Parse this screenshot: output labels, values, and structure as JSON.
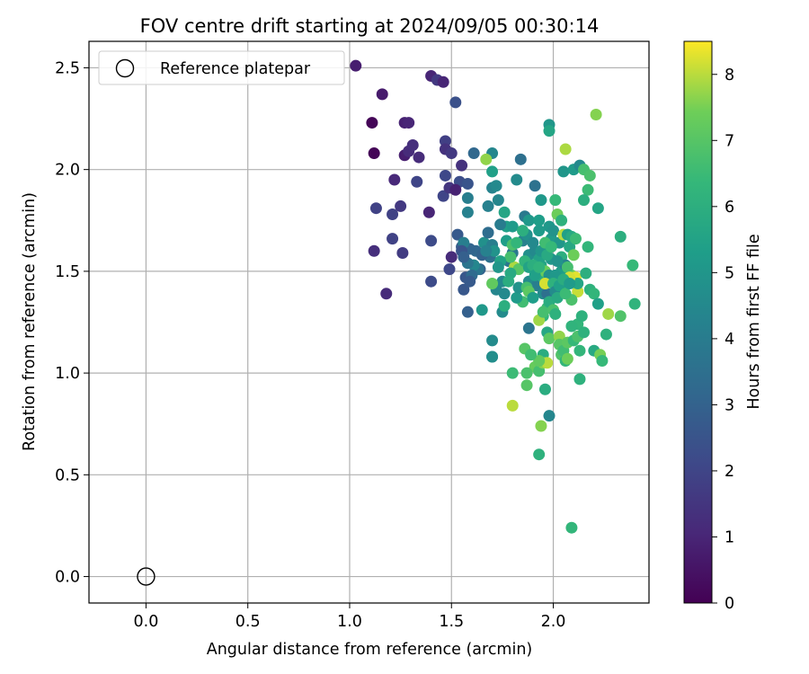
{
  "chart_data": {
    "type": "scatter",
    "title": "FOV centre drift starting at 2024/09/05 00:30:14",
    "xlabel": "Angular distance from reference (arcmin)",
    "ylabel": "Rotation from reference (arcmin)",
    "xlim": [
      -0.28,
      2.47
    ],
    "ylim": [
      -0.13,
      2.63
    ],
    "xticks": [
      0.0,
      0.5,
      1.0,
      1.5,
      2.0
    ],
    "yticks": [
      0.0,
      0.5,
      1.0,
      1.5,
      2.0,
      2.5
    ],
    "grid": true,
    "legend": {
      "position": "top-left",
      "entries": [
        {
          "label": "Reference platepar",
          "marker": "open-circle"
        }
      ]
    },
    "reference_point": {
      "x": 0.0,
      "y": 0.0
    },
    "colorbar": {
      "label": "Hours from first FF file",
      "min": 0,
      "max": 8.5,
      "ticks": [
        0,
        1,
        2,
        3,
        4,
        5,
        6,
        7,
        8
      ],
      "colormap": "viridis"
    },
    "series": [
      {
        "points": [
          [
            1.03,
            2.51,
            0.8
          ],
          [
            1.11,
            2.23,
            0.1
          ],
          [
            1.12,
            2.08,
            0.1
          ],
          [
            1.16,
            2.37,
            0.7
          ],
          [
            1.27,
            2.23,
            0.9
          ],
          [
            1.29,
            2.23,
            1.0
          ],
          [
            1.4,
            2.46,
            1.0
          ],
          [
            1.43,
            2.44,
            1.6
          ],
          [
            1.46,
            2.43,
            1.0
          ],
          [
            1.52,
            2.33,
            2.4
          ],
          [
            1.22,
            1.95,
            1.1
          ],
          [
            1.27,
            2.07,
            0.8
          ],
          [
            1.29,
            2.09,
            1.2
          ],
          [
            1.31,
            2.12,
            1.3
          ],
          [
            1.34,
            2.06,
            1.2
          ],
          [
            1.47,
            2.14,
            1.8
          ],
          [
            1.47,
            2.1,
            1.4
          ],
          [
            1.5,
            2.08,
            1.6
          ],
          [
            1.47,
            1.97,
            2.1
          ],
          [
            1.55,
            2.02,
            1.4
          ],
          [
            1.39,
            1.79,
            1.0
          ],
          [
            1.13,
            1.81,
            1.9
          ],
          [
            1.21,
            1.78,
            1.9
          ],
          [
            1.25,
            1.82,
            1.6
          ],
          [
            1.33,
            1.94,
            2.0
          ],
          [
            1.46,
            1.87,
            2.0
          ],
          [
            1.49,
            1.91,
            1.5
          ],
          [
            1.54,
            1.94,
            2.3
          ],
          [
            1.58,
            1.93,
            2.5
          ],
          [
            1.61,
            2.08,
            3.2
          ],
          [
            1.12,
            1.6,
            1.3
          ],
          [
            1.18,
            1.39,
            1.2
          ],
          [
            1.21,
            1.66,
            1.9
          ],
          [
            1.26,
            1.59,
            1.7
          ],
          [
            1.4,
            1.65,
            2.2
          ],
          [
            1.4,
            1.45,
            2.2
          ],
          [
            1.49,
            1.51,
            2.1
          ],
          [
            1.5,
            1.57,
            1.2
          ],
          [
            1.52,
            1.9,
            0.9
          ],
          [
            1.53,
            1.68,
            2.7
          ],
          [
            1.55,
            1.62,
            2.8
          ],
          [
            1.57,
            1.47,
            2.6
          ],
          [
            1.56,
            1.41,
            2.6
          ],
          [
            1.58,
            1.3,
            2.9
          ],
          [
            1.58,
            1.86,
            4.1
          ],
          [
            1.58,
            1.79,
            4.2
          ],
          [
            1.62,
            1.6,
            3.2
          ],
          [
            1.64,
            1.51,
            3.0
          ],
          [
            1.66,
            1.64,
            4.8
          ],
          [
            1.68,
            1.82,
            4.2
          ],
          [
            1.68,
            1.69,
            3.4
          ],
          [
            1.7,
            2.08,
            4.4
          ],
          [
            1.7,
            1.99,
            5.4
          ],
          [
            1.7,
            1.91,
            4.3
          ],
          [
            1.72,
            1.92,
            4.5
          ],
          [
            1.67,
            2.05,
            7.7
          ],
          [
            1.69,
            1.57,
            3.5
          ],
          [
            1.7,
            1.63,
            4.1
          ],
          [
            1.73,
            1.85,
            4.4
          ],
          [
            1.75,
            1.45,
            4.5
          ],
          [
            1.72,
            1.41,
            4.4
          ],
          [
            1.75,
            1.3,
            4.6
          ],
          [
            1.76,
            1.39,
            4.5
          ],
          [
            1.65,
            1.31,
            5.1
          ],
          [
            1.7,
            1.44,
            7.2
          ],
          [
            1.7,
            1.16,
            4.6
          ],
          [
            1.7,
            1.08,
            4.2
          ],
          [
            1.7,
            1.08,
            4.7
          ],
          [
            1.77,
            1.72,
            5.4
          ],
          [
            1.76,
            1.79,
            5.6
          ],
          [
            1.78,
            1.55,
            3.8
          ],
          [
            1.8,
            1.59,
            3.9
          ],
          [
            1.8,
            1.72,
            5.2
          ],
          [
            1.82,
            1.95,
            4.6
          ],
          [
            1.84,
            2.05,
            3.5
          ],
          [
            1.85,
            1.65,
            4.2
          ],
          [
            1.86,
            1.77,
            3.9
          ],
          [
            1.87,
            1.68,
            4.8
          ],
          [
            1.88,
            1.75,
            5.1
          ],
          [
            1.88,
            1.58,
            4.8
          ],
          [
            1.88,
            1.22,
            3.7
          ],
          [
            1.88,
            1.45,
            4.6
          ],
          [
            1.9,
            1.64,
            4.5
          ],
          [
            1.91,
            1.92,
            3.6
          ],
          [
            1.93,
            1.75,
            5.3
          ],
          [
            1.93,
            1.7,
            5.2
          ],
          [
            1.9,
            1.52,
            5.6
          ],
          [
            1.92,
            1.43,
            4.1
          ],
          [
            1.94,
            1.53,
            5.6
          ],
          [
            1.95,
            1.39,
            4.6
          ],
          [
            1.97,
            1.39,
            3.5
          ],
          [
            1.94,
            1.85,
            5.1
          ],
          [
            1.98,
            2.22,
            5.0
          ],
          [
            1.98,
            2.19,
            5.6
          ],
          [
            1.98,
            1.72,
            5.1
          ],
          [
            1.99,
            1.66,
            5.2
          ],
          [
            2.0,
            1.7,
            4.9
          ],
          [
            2.01,
            1.85,
            6.4
          ],
          [
            2.02,
            1.78,
            7.4
          ],
          [
            2.03,
            1.64,
            5.0
          ],
          [
            2.04,
            1.57,
            6.0
          ],
          [
            2.04,
            1.75,
            6.1
          ],
          [
            2.05,
            1.68,
            8.0
          ],
          [
            2.07,
            1.68,
            5.4
          ],
          [
            2.08,
            1.62,
            5.7
          ],
          [
            2.09,
            1.67,
            5.8
          ],
          [
            2.1,
            1.58,
            7.4
          ],
          [
            2.11,
            1.66,
            6.5
          ],
          [
            2.05,
            1.99,
            5.0
          ],
          [
            2.06,
            2.1,
            7.9
          ],
          [
            2.1,
            2.0,
            5.2
          ],
          [
            2.13,
            2.02,
            4.5
          ],
          [
            2.15,
            2.0,
            6.7
          ],
          [
            2.17,
            1.9,
            6.5
          ],
          [
            2.18,
            1.97,
            6.8
          ],
          [
            2.15,
            1.85,
            6.0
          ],
          [
            2.22,
            1.81,
            5.6
          ],
          [
            2.21,
            2.27,
            7.6
          ],
          [
            2.09,
            1.48,
            7.4
          ],
          [
            2.11,
            1.47,
            8.3
          ],
          [
            2.12,
            1.4,
            8.1
          ],
          [
            2.12,
            1.44,
            5.6
          ],
          [
            2.16,
            1.49,
            6.0
          ],
          [
            2.17,
            1.62,
            6.3
          ],
          [
            2.18,
            1.41,
            6.1
          ],
          [
            2.2,
            1.39,
            6.3
          ],
          [
            2.22,
            1.34,
            5.4
          ],
          [
            2.09,
            1.36,
            6.8
          ],
          [
            2.12,
            1.24,
            6.3
          ],
          [
            2.14,
            1.28,
            6.1
          ],
          [
            2.04,
            1.5,
            5.3
          ],
          [
            2.05,
            1.43,
            6.1
          ],
          [
            2.06,
            1.53,
            4.2
          ],
          [
            2.07,
            1.52,
            6.7
          ],
          [
            2.08,
            1.47,
            8.2
          ],
          [
            1.95,
            1.47,
            5.9
          ],
          [
            1.96,
            1.5,
            7.3
          ],
          [
            1.97,
            1.45,
            6.6
          ],
          [
            1.98,
            1.48,
            4.8
          ],
          [
            1.99,
            1.56,
            5.1
          ],
          [
            1.97,
            1.32,
            6.5
          ],
          [
            1.98,
            1.35,
            5.9
          ],
          [
            1.95,
            1.28,
            6.3
          ],
          [
            1.93,
            1.26,
            7.8
          ],
          [
            1.95,
            1.3,
            6.7
          ],
          [
            1.96,
            1.44,
            8.2
          ],
          [
            1.97,
            1.2,
            5.7
          ],
          [
            1.95,
            1.09,
            5.9
          ],
          [
            1.98,
            1.17,
            7.1
          ],
          [
            2.0,
            1.31,
            6.8
          ],
          [
            2.01,
            1.29,
            6.1
          ],
          [
            2.03,
            1.18,
            7.7
          ],
          [
            2.03,
            1.14,
            7.0
          ],
          [
            2.04,
            1.09,
            6.9
          ],
          [
            2.05,
            1.11,
            6.6
          ],
          [
            2.06,
            1.06,
            6.3
          ],
          [
            2.07,
            1.15,
            7.1
          ],
          [
            2.07,
            1.07,
            7.4
          ],
          [
            2.09,
            1.23,
            6.2
          ],
          [
            2.1,
            1.16,
            6.4
          ],
          [
            2.12,
            1.18,
            6.8
          ],
          [
            2.13,
            1.11,
            6.3
          ],
          [
            2.15,
            1.2,
            6.1
          ],
          [
            2.2,
            1.11,
            5.8
          ],
          [
            2.23,
            1.09,
            7.5
          ],
          [
            2.24,
            1.06,
            6.4
          ],
          [
            2.26,
            1.19,
            6.1
          ],
          [
            2.27,
            1.29,
            7.8
          ],
          [
            2.33,
            1.28,
            6.9
          ],
          [
            2.33,
            1.67,
            6.0
          ],
          [
            2.39,
            1.53,
            6.4
          ],
          [
            2.4,
            1.34,
            6.2
          ],
          [
            2.13,
            0.97,
            6.1
          ],
          [
            1.91,
            1.03,
            7.3
          ],
          [
            1.93,
            1.01,
            6.7
          ],
          [
            1.95,
            1.05,
            7.6
          ],
          [
            1.97,
            1.05,
            8.0
          ],
          [
            1.93,
            1.06,
            7.2
          ],
          [
            1.96,
            0.92,
            5.9
          ],
          [
            1.98,
            0.79,
            4.4
          ],
          [
            1.87,
            0.94,
            7.0
          ],
          [
            1.86,
            1.12,
            7.0
          ],
          [
            1.87,
            1.0,
            6.8
          ],
          [
            1.89,
            1.09,
            6.6
          ],
          [
            1.8,
            1.0,
            6.5
          ],
          [
            1.8,
            0.84,
            8.0
          ],
          [
            1.94,
            0.74,
            7.6
          ],
          [
            1.93,
            0.6,
            6.1
          ],
          [
            2.09,
            0.24,
            6.3
          ],
          [
            1.81,
            1.52,
            7.9
          ],
          [
            1.83,
            1.51,
            7.0
          ],
          [
            1.86,
            1.55,
            6.2
          ],
          [
            1.85,
            1.35,
            6.6
          ],
          [
            1.82,
            1.37,
            5.2
          ],
          [
            1.83,
            1.42,
            4.9
          ],
          [
            1.87,
            1.42,
            6.7
          ],
          [
            1.88,
            1.4,
            7.1
          ],
          [
            1.9,
            1.37,
            5.3
          ],
          [
            1.91,
            1.6,
            4.5
          ],
          [
            1.93,
            1.56,
            5.5
          ],
          [
            1.77,
            1.65,
            5.3
          ],
          [
            1.79,
            1.57,
            6.7
          ],
          [
            1.8,
            1.63,
            6.8
          ],
          [
            1.79,
            1.49,
            5.8
          ],
          [
            1.78,
            1.45,
            5.9
          ],
          [
            1.76,
            1.33,
            6.0
          ],
          [
            1.74,
            1.55,
            5.5
          ],
          [
            1.73,
            1.52,
            5.0
          ],
          [
            1.71,
            1.6,
            4.9
          ],
          [
            1.74,
            1.73,
            4.0
          ],
          [
            1.65,
            1.58,
            3.0
          ],
          [
            1.67,
            1.6,
            4.2
          ],
          [
            1.63,
            1.51,
            3.7
          ],
          [
            1.61,
            1.53,
            4.4
          ],
          [
            1.6,
            1.48,
            3.3
          ],
          [
            1.59,
            1.45,
            2.7
          ],
          [
            1.59,
            1.61,
            3.1
          ],
          [
            1.58,
            1.54,
            3.7
          ],
          [
            1.56,
            1.64,
            4.1
          ],
          [
            1.55,
            1.6,
            2.5
          ],
          [
            1.56,
            1.57,
            2.9
          ],
          [
            1.82,
            1.64,
            6.3
          ],
          [
            1.85,
            1.7,
            6.0
          ],
          [
            1.88,
            1.52,
            5.5
          ],
          [
            1.9,
            1.53,
            6.0
          ],
          [
            1.91,
            1.48,
            5.4
          ],
          [
            1.93,
            1.52,
            6.2
          ],
          [
            1.94,
            1.6,
            5.0
          ],
          [
            1.96,
            1.64,
            6.6
          ],
          [
            1.97,
            1.58,
            5.8
          ],
          [
            1.99,
            1.62,
            6.4
          ],
          [
            2.01,
            1.48,
            5.1
          ],
          [
            2.02,
            1.55,
            4.9
          ],
          [
            2.0,
            1.44,
            6.1
          ],
          [
            2.01,
            1.4,
            4.6
          ],
          [
            2.02,
            1.37,
            5.8
          ],
          [
            2.03,
            1.43,
            5.4
          ],
          [
            2.05,
            1.46,
            5.9
          ],
          [
            2.06,
            1.39,
            6.5
          ],
          [
            2.08,
            1.44,
            5.2
          ]
        ]
      }
    ]
  }
}
